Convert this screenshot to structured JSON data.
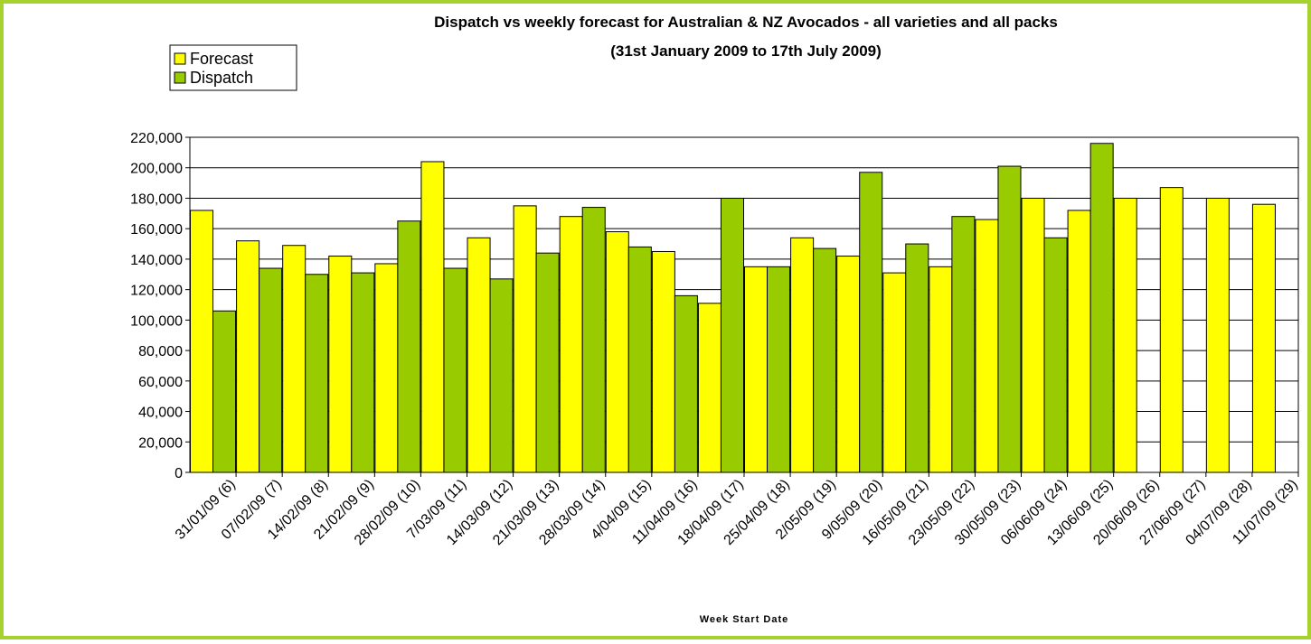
{
  "chart_data": {
    "type": "bar",
    "title": "Dispatch vs weekly forecast for Australian & NZ Avocados - all varieties and all packs",
    "subtitle": "(31st January 2009 to 17th July 2009)",
    "x_label": "Week Start Date",
    "legend_position": "top-left",
    "grid": true,
    "categories": [
      "31/01/09 (6)",
      "07/02/09 (7)",
      "14/02/09 (8)",
      "21/02/09 (9)",
      "28/02/09 (10)",
      "7/03/09 (11)",
      "14/03/09 (12)",
      "21/03/09 (13)",
      "28/03/09 (14)",
      "4/04/09 (15)",
      "11/04/09 (16)",
      "18/04/09 (17)",
      "25/04/09 (18)",
      "2/05/09 (19)",
      "9/05/09 (20)",
      "16/05/09 (21)",
      "23/05/09 (22)",
      "30/05/09 (23)",
      "06/06/09 (24)",
      "13/06/09 (25)",
      "20/06/09 (26)",
      "27/06/09 (27)",
      "04/07/09 (28)",
      "11/07/09 (29)"
    ],
    "series": [
      {
        "name": "Forecast",
        "color": "#ffff00",
        "values": [
          172000,
          152000,
          149000,
          142000,
          137000,
          204000,
          154000,
          175000,
          168000,
          158000,
          145000,
          111000,
          135000,
          154000,
          142000,
          131000,
          135000,
          166000,
          180000,
          172000,
          180000,
          187000,
          180000,
          176000
        ]
      },
      {
        "name": "Dispatch",
        "color": "#99cc00",
        "values": [
          106000,
          134000,
          130000,
          131000,
          165000,
          134000,
          127000,
          144000,
          174000,
          148000,
          116000,
          180000,
          135000,
          147000,
          197000,
          150000,
          168000,
          201000,
          154000,
          216000,
          null,
          null,
          null,
          null
        ]
      }
    ],
    "ylim": [
      0,
      220000
    ],
    "yticks": [
      0,
      {
        "value": 20000,
        "label": "20,000"
      },
      {
        "value": 40000,
        "label": "40,000"
      },
      {
        "value": 60000,
        "label": "60,000"
      },
      {
        "value": 80000,
        "label": "80,000"
      },
      {
        "value": 100000,
        "label": "100,000"
      },
      {
        "value": 120000,
        "label": "120,000"
      },
      {
        "value": 140000,
        "label": "140,000"
      },
      {
        "value": 160000,
        "label": "160,000"
      },
      {
        "value": 180000,
        "label": "180,000"
      },
      {
        "value": 200000,
        "label": "200,000"
      },
      {
        "value": 220000,
        "label": "220,000"
      }
    ]
  }
}
